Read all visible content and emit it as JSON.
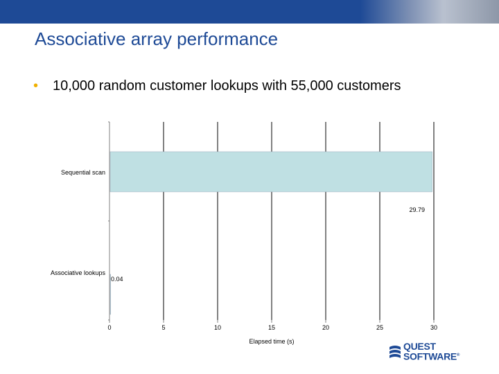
{
  "slide": {
    "title": "Associative array performance",
    "bullet": "10,000 random customer lookups with 55,000 customers",
    "bullet_marker": "•"
  },
  "logo": {
    "line1": "QUEST",
    "line2": "SOFTWARE",
    "mark": "®"
  },
  "colors": {
    "brand_blue": "#1e4a96",
    "bar_fill": "#bfe0e3",
    "bullet": "#f0b000"
  },
  "chart_data": {
    "type": "bar",
    "orientation": "horizontal",
    "categories": [
      "Sequential scan",
      "Associative lookups"
    ],
    "values": [
      29.79,
      0.04
    ],
    "data_labels": [
      "29.79",
      "0.04"
    ],
    "xlabel": "Elapsed time (s)",
    "ylabel": "",
    "xlim": [
      0,
      30
    ],
    "xticks": [
      "0",
      "5",
      "10",
      "15",
      "20",
      "25",
      "30"
    ],
    "grid": "vertical",
    "legend": "none"
  }
}
